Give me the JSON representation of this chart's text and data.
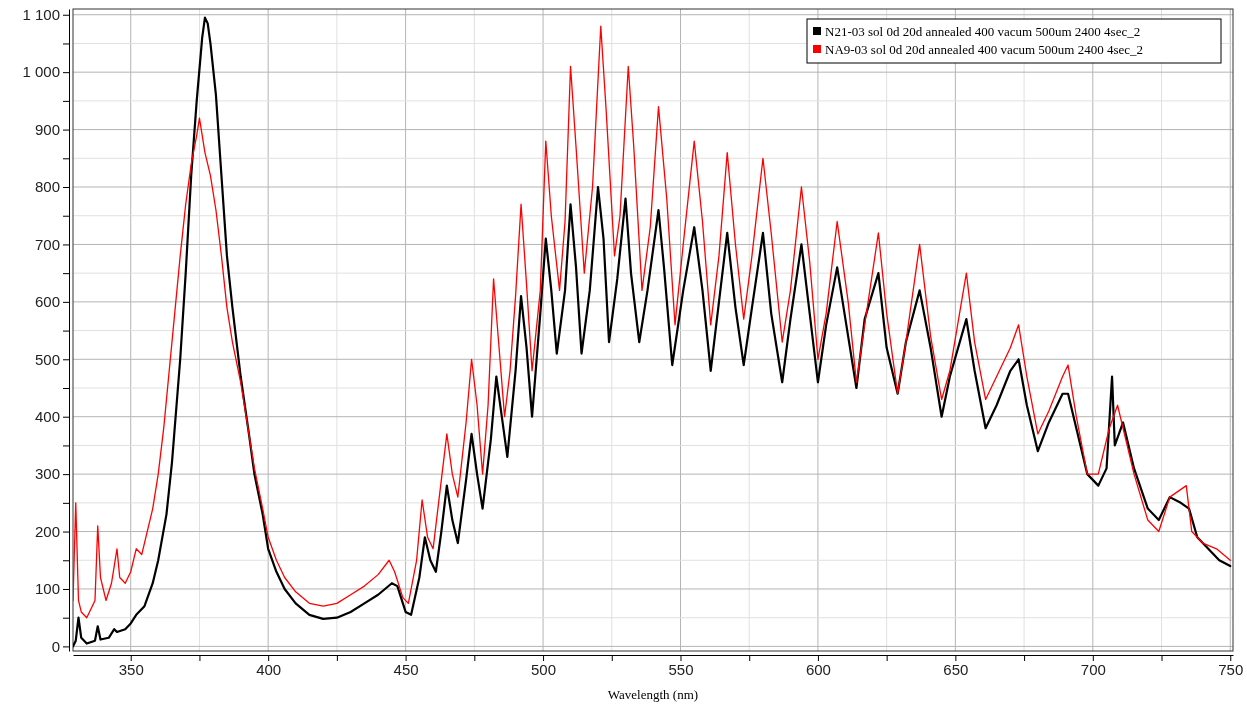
{
  "chart_data": {
    "type": "line",
    "xlabel": "Wavelength (nm)",
    "xlim": [
      329,
      751
    ],
    "ylim": [
      -8,
      1110
    ],
    "xticks": [
      350,
      {
        "value": 375,
        "label": null
      },
      400,
      {
        "value": 425,
        "label": null
      },
      450,
      {
        "value": 475,
        "label": null
      },
      500,
      {
        "value": 525,
        "label": null
      },
      550,
      {
        "value": 575,
        "label": null
      },
      600,
      {
        "value": 625,
        "label": null
      },
      650,
      {
        "value": 675,
        "label": null
      },
      700,
      {
        "value": 725,
        "label": null
      },
      750
    ],
    "yticks": [
      0,
      {
        "value": 50,
        "label": null
      },
      100,
      {
        "value": 150,
        "label": null
      },
      200,
      {
        "value": 250,
        "label": null
      },
      300,
      {
        "value": 350,
        "label": null
      },
      400,
      {
        "value": 450,
        "label": null
      },
      500,
      {
        "value": 550,
        "label": null
      },
      600,
      {
        "value": 650,
        "label": null
      },
      700,
      {
        "value": 750,
        "label": null
      },
      800,
      {
        "value": 850,
        "label": null
      },
      900,
      {
        "value": 950,
        "label": null
      },
      {
        "value": 1000,
        "label": "1 000"
      },
      {
        "value": 1050,
        "label": null
      },
      {
        "value": 1100,
        "label": "1 100"
      }
    ],
    "grid": true,
    "legend": "top right",
    "marker": "none",
    "line_style": "solid",
    "series": [
      {
        "name": "N21-03 sol 0d 20d annealed 400 vacum 500um 2400 4sec_2",
        "color": "#000000",
        "x": [
          329,
          330,
          331,
          332,
          334,
          337,
          338,
          339,
          342,
          344,
          345,
          348,
          350,
          352,
          355,
          358,
          360,
          363,
          365,
          368,
          370,
          372,
          374,
          376,
          377,
          378,
          379,
          381,
          383,
          385,
          387,
          390,
          393,
          395,
          398,
          400,
          403,
          406,
          410,
          415,
          420,
          425,
          430,
          435,
          440,
          445,
          447,
          450,
          452,
          455,
          457,
          459,
          461,
          463,
          465,
          467,
          469,
          472,
          474,
          476,
          478,
          481,
          483,
          485,
          487,
          490,
          492,
          494,
          496,
          499,
          501,
          503,
          505,
          508,
          510,
          512,
          514,
          517,
          520,
          522,
          524,
          527,
          530,
          532,
          535,
          538,
          542,
          544,
          547,
          551,
          555,
          558,
          561,
          564,
          567,
          570,
          573,
          576,
          580,
          583,
          587,
          590,
          594,
          597,
          600,
          603,
          607,
          611,
          614,
          617,
          622,
          625,
          629,
          632,
          637,
          641,
          645,
          648,
          654,
          657,
          661,
          665,
          670,
          673,
          676,
          680,
          684,
          689,
          691,
          694,
          698,
          702,
          705,
          707,
          708,
          711,
          715,
          720,
          724,
          728,
          732,
          735,
          738,
          742,
          746,
          750
        ],
        "values": [
          0,
          10,
          50,
          15,
          5,
          10,
          35,
          12,
          15,
          30,
          25,
          30,
          40,
          55,
          70,
          110,
          150,
          230,
          320,
          500,
          650,
          820,
          950,
          1060,
          1095,
          1085,
          1050,
          960,
          820,
          680,
          590,
          470,
          370,
          300,
          230,
          170,
          130,
          100,
          75,
          55,
          48,
          50,
          60,
          75,
          90,
          110,
          105,
          60,
          55,
          120,
          190,
          150,
          130,
          200,
          280,
          220,
          180,
          290,
          370,
          300,
          240,
          360,
          470,
          400,
          330,
          480,
          610,
          520,
          400,
          580,
          710,
          620,
          510,
          620,
          770,
          660,
          510,
          620,
          800,
          710,
          530,
          640,
          780,
          650,
          530,
          620,
          760,
          660,
          490,
          620,
          730,
          620,
          480,
          600,
          720,
          590,
          490,
          590,
          720,
          580,
          460,
          570,
          700,
          580,
          460,
          560,
          660,
          540,
          450,
          570,
          650,
          520,
          440,
          530,
          620,
          520,
          400,
          470,
          570,
          480,
          380,
          420,
          480,
          500,
          420,
          340,
          390,
          440,
          440,
          380,
          300,
          280,
          310,
          470,
          350,
          390,
          310,
          240,
          220,
          260,
          250,
          240,
          190,
          170,
          150,
          140
        ]
      },
      {
        "name": "NA9-03 sol 0d 20d annealed 400 vacum 500um 2400 4sec_2",
        "color": "#ff0000",
        "x": [
          329,
          330,
          331,
          332,
          334,
          337,
          338,
          339,
          341,
          343,
          345,
          346,
          348,
          350,
          352,
          354,
          356,
          358,
          360,
          362,
          364,
          366,
          368,
          370,
          372,
          374,
          375,
          377,
          379,
          381,
          383,
          385,
          387,
          390,
          393,
          395,
          398,
          400,
          403,
          406,
          410,
          415,
          420,
          425,
          430,
          435,
          440,
          444,
          446,
          449,
          451,
          454,
          456,
          458,
          460,
          463,
          465,
          467,
          469,
          472,
          474,
          476,
          478,
          480,
          482,
          484,
          486,
          488,
          490,
          492,
          494,
          496,
          499,
          501,
          503,
          506,
          508,
          510,
          512,
          515,
          518,
          521,
          523,
          526,
          528,
          531,
          533,
          536,
          539,
          542,
          545,
          548,
          551,
          555,
          558,
          561,
          564,
          567,
          570,
          573,
          576,
          580,
          583,
          587,
          590,
          594,
          597,
          600,
          603,
          607,
          611,
          614,
          617,
          622,
          625,
          629,
          632,
          637,
          641,
          645,
          648,
          654,
          657,
          661,
          665,
          670,
          673,
          676,
          680,
          684,
          689,
          691,
          694,
          698,
          702,
          706,
          709,
          712,
          715,
          720,
          724,
          728,
          731,
          734,
          736,
          740,
          745,
          750
        ],
        "values": [
          80,
          250,
          80,
          60,
          50,
          80,
          210,
          120,
          80,
          110,
          170,
          120,
          110,
          130,
          170,
          160,
          200,
          240,
          300,
          380,
          480,
          580,
          680,
          770,
          840,
          890,
          920,
          860,
          820,
          760,
          680,
          590,
          530,
          460,
          370,
          310,
          240,
          190,
          150,
          120,
          95,
          75,
          70,
          75,
          90,
          105,
          125,
          150,
          130,
          85,
          75,
          150,
          255,
          190,
          170,
          290,
          370,
          300,
          260,
          390,
          500,
          420,
          300,
          420,
          640,
          520,
          400,
          480,
          610,
          770,
          630,
          480,
          620,
          880,
          750,
          620,
          740,
          1010,
          870,
          650,
          800,
          1080,
          930,
          680,
          750,
          1010,
          870,
          620,
          730,
          940,
          780,
          560,
          700,
          880,
          740,
          560,
          680,
          860,
          700,
          570,
          680,
          850,
          720,
          530,
          620,
          800,
          670,
          500,
          580,
          740,
          600,
          460,
          560,
          720,
          580,
          440,
          530,
          700,
          540,
          430,
          480,
          650,
          530,
          430,
          470,
          520,
          560,
          470,
          370,
          410,
          470,
          490,
          400,
          300,
          300,
          380,
          420,
          360,
          300,
          220,
          200,
          260,
          270,
          280,
          200,
          180,
          170,
          150
        ]
      }
    ]
  }
}
